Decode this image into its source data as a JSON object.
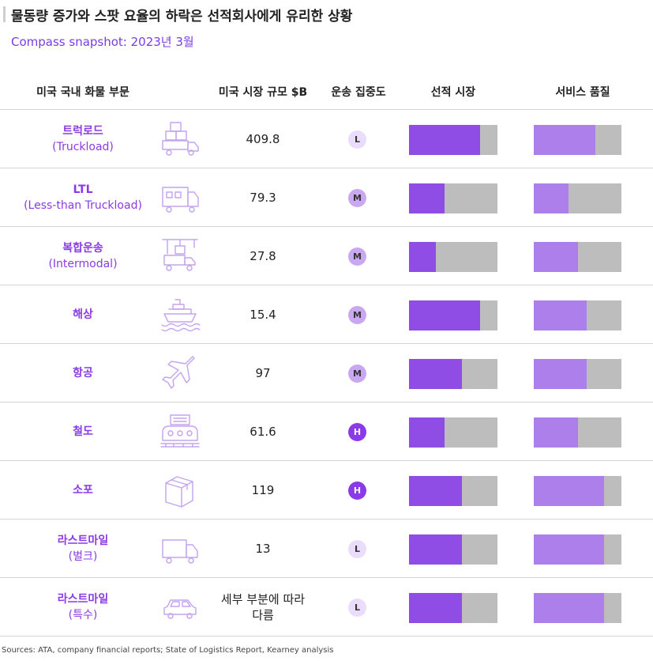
{
  "title": "물동량 증가와 스팟 요율의 하락은 선적회사에게 유리한 상황",
  "subtitle": "Compass snapshot: 2023년 3월",
  "headers": {
    "mode": "미국 국내 화물 부문",
    "size": "미국 시장 규모 $B",
    "concentration": "운송 집중도",
    "shipper": "선적 시장",
    "service": "서비스 품질"
  },
  "source": "Sources: ATA, company financial reports; State of Logistics Report, Kearney analysis",
  "colors": {
    "accent": "#8a3ae6",
    "shipper_fill": "#8f4de6",
    "service_fill": "#ad7fea",
    "bar_bg": "#bdbdbd"
  },
  "chart_data": {
    "type": "table",
    "rows": [
      {
        "name": "트럭로드",
        "sub": "(Truckload)",
        "icon": "truck-icon",
        "size": "409.8",
        "concentration": "L",
        "shipper": 0.8,
        "service": 0.7
      },
      {
        "name": "LTL",
        "sub": "(Less-than Truckload)",
        "icon": "box-truck-icon",
        "size": "79.3",
        "concentration": "M",
        "shipper": 0.4,
        "service": 0.4
      },
      {
        "name": "복합운송",
        "sub": "(Intermodal)",
        "icon": "crane-truck-icon",
        "size": "27.8",
        "concentration": "M",
        "shipper": 0.3,
        "service": 0.5
      },
      {
        "name": "해상",
        "sub": "",
        "icon": "ship-icon",
        "size": "15.4",
        "concentration": "M",
        "shipper": 0.8,
        "service": 0.6
      },
      {
        "name": "항공",
        "sub": "",
        "icon": "airplane-icon",
        "size": "97",
        "concentration": "M",
        "shipper": 0.6,
        "service": 0.6
      },
      {
        "name": "철도",
        "sub": "",
        "icon": "train-icon",
        "size": "61.6",
        "concentration": "H",
        "shipper": 0.4,
        "service": 0.5
      },
      {
        "name": "소포",
        "sub": "",
        "icon": "parcel-icon",
        "size": "119",
        "concentration": "H",
        "shipper": 0.6,
        "service": 0.8
      },
      {
        "name": "라스트마일",
        "sub": "(벌크)",
        "icon": "van-icon",
        "size": "13",
        "concentration": "L",
        "shipper": 0.6,
        "service": 0.8
      },
      {
        "name": "라스트마일",
        "sub": "(특수)",
        "icon": "car-icon",
        "size": "세부 부분에 따라\n다름",
        "concentration": "L",
        "shipper": 0.6,
        "service": 0.8
      }
    ]
  }
}
